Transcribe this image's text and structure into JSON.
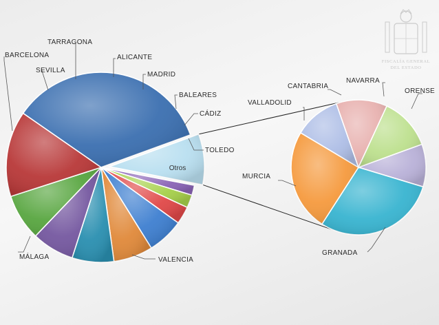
{
  "emblem": {
    "line1": "FISCALÍA GENERAL",
    "line2": "DEL ESTADO"
  },
  "chart_data": [
    {
      "type": "pie",
      "name": "main",
      "start_angle_deg": 20,
      "slices": [
        {
          "label": "Otros",
          "value": 8.6,
          "color": "#b9dff0",
          "label_inside": true
        },
        {
          "label": "TOLEDO",
          "value": 1.7,
          "color": "#8a63b6"
        },
        {
          "label": "CÁDIZ",
          "value": 2.2,
          "color": "#a6d04a"
        },
        {
          "label": "BALEARES",
          "value": 3.0,
          "color": "#e04848"
        },
        {
          "label": "MADRID",
          "value": 6.2,
          "color": "#3e7fd0"
        },
        {
          "label": "ALICANTE",
          "value": 6.7,
          "color": "#e0893a"
        },
        {
          "label": "TARRAGONA",
          "value": 7.1,
          "color": "#2a8fb0"
        },
        {
          "label": "SEVILLA",
          "value": 7.2,
          "color": "#7558a0"
        },
        {
          "label": "BARCELONA",
          "value": 7.9,
          "color": "#58a640"
        },
        {
          "label": "MÁLAGA",
          "value": 14.6,
          "color": "#b83838"
        },
        {
          "label": "VALENCIA",
          "value": 34.8,
          "color": "#3b6fb0"
        }
      ]
    },
    {
      "type": "pie",
      "name": "detail",
      "start_angle_deg": 20,
      "slices": [
        {
          "label": "ORENSE",
          "value": 9.2,
          "color": "#b9b1d8"
        },
        {
          "label": "GRANADA",
          "value": 26.5,
          "color": "#38b4d0"
        },
        {
          "label": "MURCIA",
          "value": 22.0,
          "color": "#f59a3e"
        },
        {
          "label": "VALLADOLID",
          "value": 10.0,
          "color": "#aebee6"
        },
        {
          "label": "CANTABRIA",
          "value": 11.0,
          "color": "#e8b2b0"
        },
        {
          "label": "NAVARRA",
          "value": 11.3,
          "color": "#bde08e"
        }
      ]
    }
  ]
}
